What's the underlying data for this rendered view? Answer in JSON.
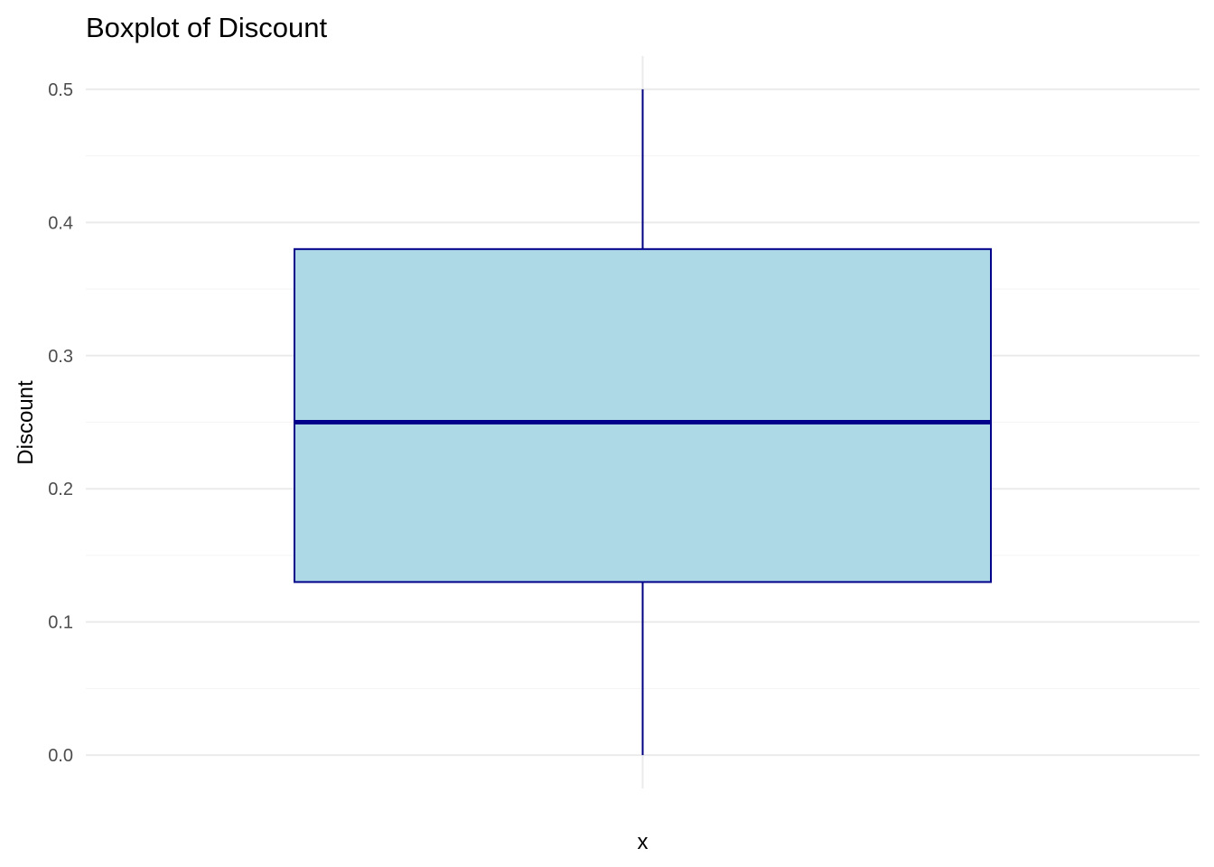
{
  "chart_data": {
    "type": "boxplot",
    "title": "Boxplot of Discount",
    "xlabel": "x",
    "ylabel": "Discount",
    "ylim": [
      -0.025,
      0.525
    ],
    "y_ticks": [
      "0.0",
      "0.1",
      "0.2",
      "0.3",
      "0.4",
      "0.5"
    ],
    "y_tick_values": [
      0.0,
      0.1,
      0.2,
      0.3,
      0.4,
      0.5
    ],
    "grid": true,
    "series": [
      {
        "min": 0.0,
        "q1": 0.13,
        "median": 0.25,
        "q3": 0.38,
        "max": 0.5
      }
    ],
    "colors": {
      "box_fill": "#add8e6",
      "box_stroke": "#00008b",
      "whisker": "#000080",
      "grid_major": "#ebebeb",
      "grid_minor": "#f5f5f5"
    }
  }
}
